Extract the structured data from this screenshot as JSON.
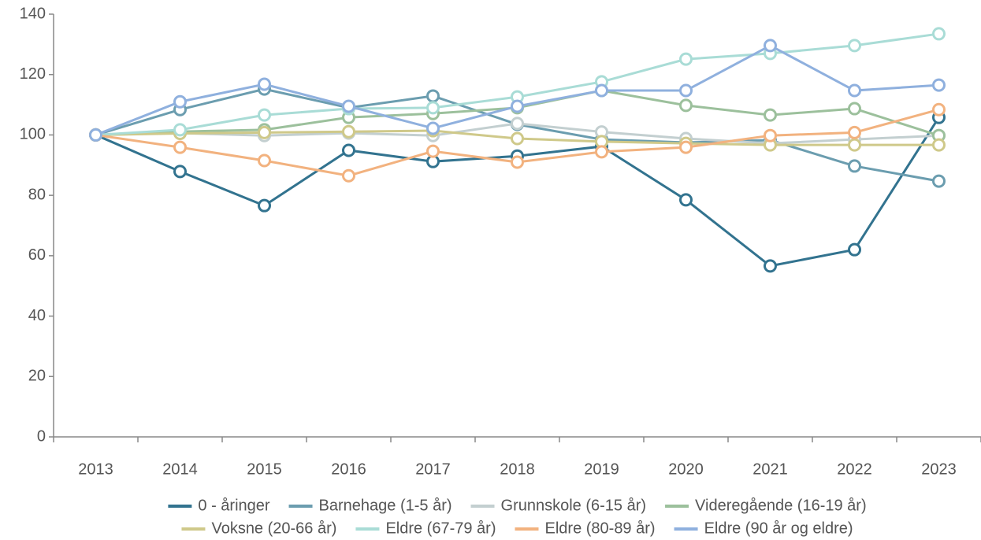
{
  "chart_data": {
    "type": "line",
    "categories": [
      "2013",
      "2014",
      "2015",
      "2016",
      "2017",
      "2018",
      "2019",
      "2020",
      "2021",
      "2022",
      "2023"
    ],
    "ylim": [
      0,
      140
    ],
    "yticks": [
      0,
      20,
      40,
      60,
      80,
      100,
      120,
      140
    ],
    "series": [
      {
        "name": "0 - åringer",
        "color": "#32738f",
        "values": [
          100,
          87.9,
          76.6,
          94.9,
          91.2,
          93,
          96.2,
          78.5,
          56.6,
          62,
          105.8
        ]
      },
      {
        "name": "Barnehage (1-5 år)",
        "color": "#6b9daf",
        "values": [
          100,
          108.4,
          115.2,
          109,
          112.9,
          103.5,
          98.5,
          97.5,
          98.3,
          89.7,
          84.7
        ]
      },
      {
        "name": "Grunnskole (6-15 år)",
        "color": "#c3cfd0",
        "values": [
          100,
          100.6,
          99.8,
          100.6,
          99.8,
          103.8,
          101,
          98.8,
          97.2,
          98.5,
          99.8
        ]
      },
      {
        "name": "Videregående (16-19 år)",
        "color": "#9cc09c",
        "values": [
          100,
          101.1,
          101.7,
          105.8,
          107.1,
          109,
          114.7,
          109.8,
          106.6,
          108.7,
          99.8
        ]
      },
      {
        "name": "Voksne (20-66 år)",
        "color": "#cfc98a",
        "values": [
          100,
          100.5,
          100.8,
          101.1,
          101.4,
          98.8,
          97.8,
          97.2,
          96.7,
          96.7,
          96.7
        ]
      },
      {
        "name": "Eldre (67-79 år)",
        "color": "#a9dcd6",
        "values": [
          100,
          101.7,
          106.6,
          108.7,
          109,
          112.6,
          117.6,
          125.1,
          127,
          129.6,
          133.5
        ]
      },
      {
        "name": "Eldre (80-89 år)",
        "color": "#f2b27f",
        "values": [
          100,
          95.9,
          91.5,
          86.5,
          94.6,
          91,
          94.4,
          95.9,
          99.8,
          100.8,
          108.4
        ]
      },
      {
        "name": "Eldre (90 år og eldre)",
        "color": "#8fb0de",
        "values": [
          100,
          111,
          116.8,
          109.5,
          102.2,
          109.5,
          114.7,
          114.7,
          129.6,
          114.7,
          116.5
        ]
      }
    ]
  }
}
